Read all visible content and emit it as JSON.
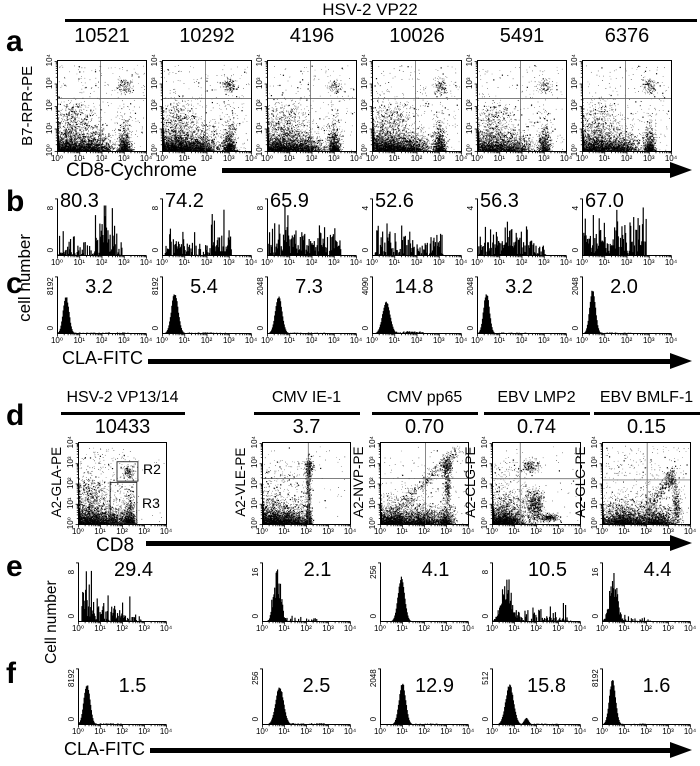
{
  "axis": {
    "log_ticks": [
      "10⁰",
      "10¹",
      "10²",
      "10³",
      "10⁴"
    ],
    "hist_zero": "0"
  },
  "chart_data": {
    "type": "flow-cytometry-figure",
    "top_group_label": "HSV-2 VP22",
    "rows": {
      "a": {
        "letter": "a",
        "kind": "scatter",
        "ylabel": "B7-RPR-PE",
        "xlabel": "CD8-Cychrome",
        "xlim_log10": [
          0,
          4
        ],
        "ylim_log10": [
          0,
          4
        ],
        "panels": [
          {
            "count": "10521"
          },
          {
            "count": "10292"
          },
          {
            "count": "4196"
          },
          {
            "count": "10026"
          },
          {
            "count": "5491"
          },
          {
            "count": "6376"
          }
        ]
      },
      "b": {
        "letter": "b",
        "kind": "histogram",
        "panels": [
          {
            "value": "80.3",
            "ymax": "8"
          },
          {
            "value": "74.2",
            "ymax": "8"
          },
          {
            "value": "65.9",
            "ymax": "8"
          },
          {
            "value": "52.6",
            "ymax": "4"
          },
          {
            "value": "56.3",
            "ymax": "4"
          },
          {
            "value": "67.0",
            "ymax": "4"
          }
        ]
      },
      "c": {
        "letter": "c",
        "kind": "histogram",
        "ylabel": "cell number",
        "xlabel": "CLA-FITC",
        "panels": [
          {
            "value": "3.2",
            "ymax": "8192"
          },
          {
            "value": "5.4",
            "ymax": "8192"
          },
          {
            "value": "7.3",
            "ymax": "2048"
          },
          {
            "value": "14.8",
            "ymax": "4090"
          },
          {
            "value": "3.2",
            "ymax": "2048"
          },
          {
            "value": "2.0",
            "ymax": "2048"
          }
        ]
      },
      "d": {
        "letter": "d",
        "kind": "scatter",
        "xlabel": "CD8",
        "panels": [
          {
            "group": "HSV-2 VP13/14",
            "value": "10433",
            "ylabel": "A2-GLA-PE",
            "gates": [
              "R2",
              "R3"
            ]
          },
          {
            "group": "CMV IE-1",
            "value": "3.7",
            "ylabel": "A2-VLE-PE"
          },
          {
            "group": "CMV pp65",
            "value": "0.70",
            "ylabel": "A2-NVP-PE"
          },
          {
            "group": "EBV LMP2",
            "value": "0.74",
            "ylabel": "A2-CLG-PE"
          },
          {
            "group": "EBV BMLF-1",
            "value": "0.15",
            "ylabel": "A2-GLC-PE"
          }
        ]
      },
      "e": {
        "letter": "e",
        "kind": "histogram",
        "ylabel": "Cell number",
        "panels": [
          {
            "value": "29.4",
            "ymax": "8"
          },
          {
            "value": "2.1",
            "ymax": "16"
          },
          {
            "value": "4.1",
            "ymax": "256"
          },
          {
            "value": "10.5",
            "ymax": "8"
          },
          {
            "value": "4.4",
            "ymax": "16"
          }
        ]
      },
      "f": {
        "letter": "f",
        "kind": "histogram",
        "xlabel": "CLA-FITC",
        "panels": [
          {
            "value": "1.5",
            "ymax": "8192"
          },
          {
            "value": "2.5",
            "ymax": "256"
          },
          {
            "value": "12.9",
            "ymax": "2048"
          },
          {
            "value": "15.8",
            "ymax": "512"
          },
          {
            "value": "1.6",
            "ymax": "8192"
          }
        ]
      }
    }
  }
}
